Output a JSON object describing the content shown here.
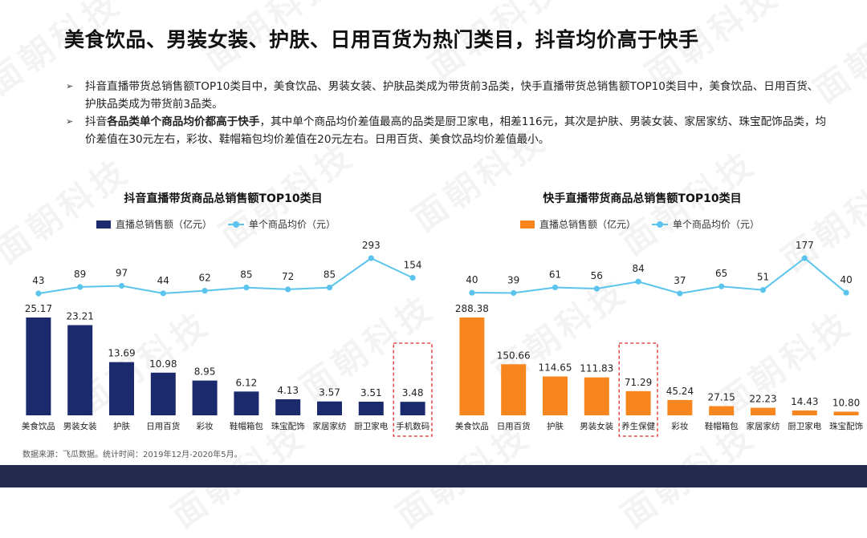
{
  "title": "美食饮品、男装女装、护肤、日用百货为热门类目，抖音均价高于快手",
  "bullets": [
    {
      "pre": "",
      "bold": "",
      "post": "抖音直播带货总销售额TOP10类目中，美食饮品、男装女装、护肤品类成为带货前3品类，快手直播带货总销售额TOP10类目中，美食饮品、日用百货、护肤品类成为带货前3品类。"
    },
    {
      "pre": "抖音",
      "bold": "各品类单个商品均价都高于快手",
      "post": "，其中单个商品均价差值最高的品类是厨卫家电，相差116元，其次是护肤、男装女装、家居家纺、珠宝配饰品类，均价差值在30元左右，彩妆、鞋帽箱包均价差值在20元左右。日用百货、美食饮品均价差值最小。"
    }
  ],
  "watermark": "面朝科技",
  "source": "数据来源：飞瓜数据。统计时间：2019年12月-2020年5月。",
  "colors": {
    "navy": "#1a2a6c",
    "orange": "#f7861f",
    "line": "#5bc4ec",
    "footer": "#232a4d",
    "highlight": "#e0292b"
  },
  "chart_data": [
    {
      "type": "bar",
      "title": "抖音直播带货商品总销售额TOP10类目",
      "categories": [
        "美食饮品",
        "男装女装",
        "护肤",
        "日用百货",
        "彩妆",
        "鞋帽箱包",
        "珠宝配饰",
        "家居家纺",
        "厨卫家电",
        "手机数码"
      ],
      "series": [
        {
          "name": "直播总销售额（亿元）",
          "kind": "bar",
          "values": [
            25.17,
            23.21,
            13.69,
            10.98,
            8.95,
            6.12,
            4.13,
            3.57,
            3.51,
            3.48
          ],
          "labels": [
            "25.17",
            "23.21",
            "13.69",
            "10.98",
            "8.95",
            "6.12",
            "4.13",
            "3.57",
            "3.51",
            "3.48"
          ]
        },
        {
          "name": "单个商品均价（元）",
          "kind": "line",
          "values": [
            43,
            89,
            97,
            44,
            62,
            85,
            72,
            85,
            293,
            154
          ]
        }
      ],
      "highlight": [
        "手机数码"
      ],
      "legend": "top"
    },
    {
      "type": "bar",
      "title": "快手直播带货商品总销售额TOP10类目",
      "categories": [
        "美食饮品",
        "日用百货",
        "护肤",
        "男装女装",
        "养生保健",
        "彩妆",
        "鞋帽箱包",
        "家居家纺",
        "厨卫家电",
        "珠宝配饰"
      ],
      "series": [
        {
          "name": "直播总销售额（亿元）",
          "kind": "bar",
          "values": [
            288.38,
            150.66,
            114.65,
            111.83,
            71.29,
            45.24,
            27.15,
            22.23,
            14.43,
            10.8
          ],
          "labels": [
            "288.38",
            "150.66",
            "114.65",
            "111.83",
            "71.29",
            "45.24",
            "27.15",
            "22.23",
            "14.43",
            "10.80"
          ]
        },
        {
          "name": "单个商品均价（元）",
          "kind": "line",
          "values": [
            40,
            39,
            61,
            56,
            84,
            37,
            65,
            51,
            177,
            40
          ]
        }
      ],
      "highlight": [
        "养生保健"
      ],
      "legend": "top"
    }
  ]
}
